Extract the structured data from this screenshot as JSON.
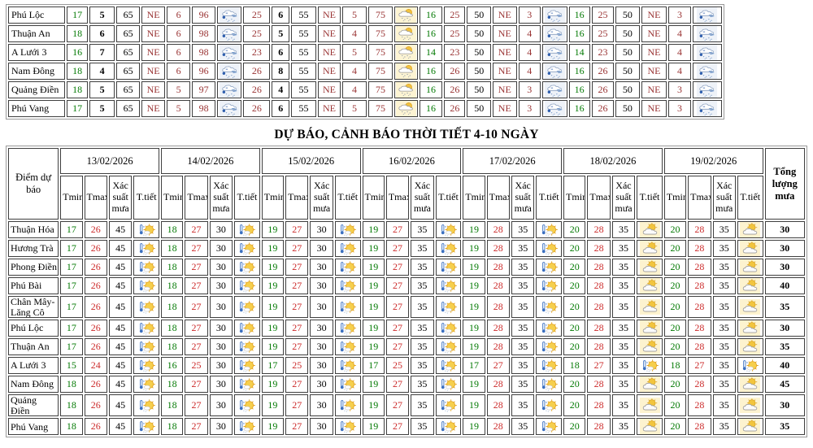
{
  "colors": {
    "tmin_green": "#047a04",
    "wind_dark_red": "#9a3434",
    "tmax_red": "#cc2b2b",
    "border": "#3f3f3f",
    "icon_bg_yellow": "#fdf4d3",
    "icon_bg_blue": "#eef2f8"
  },
  "icons": {
    "rain": "rain-cloud-icon",
    "sun_drizzle": "sun-behind-cloud-drizzle-icon",
    "sun_shower": "sun-with-shower-icon",
    "cloud_sun": "sun-behind-cloud-icon"
  },
  "top_table": {
    "rows": [
      {
        "name": "Phú Lộc",
        "cells": [
          "17",
          "5",
          "65",
          "NE",
          "6",
          "96",
          "@rain",
          "25",
          "6",
          "55",
          "NE",
          "5",
          "75",
          "@sun_drizzle",
          "16",
          "25",
          "50",
          "NE",
          "3",
          "@rain",
          "16",
          "25",
          "50",
          "NE",
          "3",
          "@rain"
        ]
      },
      {
        "name": "Thuận An",
        "cells": [
          "18",
          "6",
          "65",
          "NE",
          "6",
          "98",
          "@rain",
          "25",
          "5",
          "55",
          "NE",
          "4",
          "75",
          "@sun_drizzle",
          "16",
          "25",
          "50",
          "NE",
          "4",
          "@rain",
          "16",
          "25",
          "50",
          "NE",
          "4",
          "@rain"
        ]
      },
      {
        "name": "A Lưới 3",
        "cells": [
          "16",
          "7",
          "65",
          "NE",
          "6",
          "98",
          "@rain",
          "23",
          "6",
          "55",
          "NE",
          "5",
          "75",
          "@sun_drizzle",
          "14",
          "23",
          "50",
          "NE",
          "4",
          "@rain",
          "14",
          "23",
          "50",
          "NE",
          "4",
          "@rain"
        ]
      },
      {
        "name": "Nam Đông",
        "cells": [
          "18",
          "4",
          "65",
          "NE",
          "6",
          "96",
          "@rain",
          "26",
          "8",
          "55",
          "NE",
          "4",
          "75",
          "@sun_drizzle",
          "16",
          "26",
          "50",
          "NE",
          "4",
          "@rain",
          "16",
          "26",
          "50",
          "NE",
          "4",
          "@rain"
        ]
      },
      {
        "name": "Quảng Điền",
        "cells": [
          "18",
          "5",
          "65",
          "NE",
          "5",
          "97",
          "@rain",
          "26",
          "4",
          "55",
          "NE",
          "4",
          "75",
          "@sun_drizzle",
          "16",
          "26",
          "50",
          "NE",
          "3",
          "@rain",
          "16",
          "26",
          "50",
          "NE",
          "3",
          "@rain"
        ]
      },
      {
        "name": "Phú Vang",
        "cells": [
          "17",
          "5",
          "65",
          "NE",
          "5",
          "98",
          "@rain",
          "26",
          "6",
          "55",
          "NE",
          "5",
          "75",
          "@sun_drizzle",
          "16",
          "26",
          "50",
          "NE",
          "3",
          "@rain",
          "16",
          "26",
          "50",
          "NE",
          "3",
          "@rain"
        ]
      }
    ]
  },
  "forecast_table": {
    "title": "DỰ BÁO, CẢNH BÁO THỜI TIẾT 4-10 NGÀY",
    "header": {
      "station": "Điểm dự báo",
      "dates": [
        "13/02/2026",
        "14/02/2026",
        "15/02/2026",
        "16/02/2026",
        "17/02/2026",
        "18/02/2026",
        "19/02/2026"
      ],
      "sub": [
        "Tmin",
        "Tmax",
        "Xác suất mưa",
        "T.tiết"
      ],
      "total": "Tổng lượng mưa"
    },
    "rows": [
      {
        "name": "Thuận Hóa",
        "days": [
          [
            17,
            26,
            45,
            "@sun_shower"
          ],
          [
            18,
            27,
            30,
            "@sun_shower"
          ],
          [
            19,
            27,
            30,
            "@sun_shower"
          ],
          [
            19,
            27,
            35,
            "@sun_shower"
          ],
          [
            19,
            28,
            35,
            "@sun_shower"
          ],
          [
            20,
            28,
            35,
            "@cloud_sun"
          ],
          [
            20,
            28,
            35,
            "@cloud_sun"
          ]
        ],
        "total": 30
      },
      {
        "name": "Hương Trà",
        "days": [
          [
            17,
            26,
            45,
            "@sun_shower"
          ],
          [
            18,
            27,
            30,
            "@sun_shower"
          ],
          [
            19,
            27,
            30,
            "@sun_shower"
          ],
          [
            19,
            27,
            35,
            "@sun_shower"
          ],
          [
            19,
            28,
            35,
            "@sun_shower"
          ],
          [
            20,
            28,
            35,
            "@cloud_sun"
          ],
          [
            20,
            28,
            35,
            "@cloud_sun"
          ]
        ],
        "total": 30
      },
      {
        "name": "Phong Điền",
        "days": [
          [
            17,
            26,
            45,
            "@sun_shower"
          ],
          [
            18,
            27,
            30,
            "@sun_shower"
          ],
          [
            19,
            27,
            30,
            "@sun_shower"
          ],
          [
            19,
            27,
            35,
            "@sun_shower"
          ],
          [
            19,
            28,
            35,
            "@sun_shower"
          ],
          [
            20,
            28,
            35,
            "@cloud_sun"
          ],
          [
            20,
            28,
            35,
            "@cloud_sun"
          ]
        ],
        "total": 30
      },
      {
        "name": "Phú Bài",
        "days": [
          [
            17,
            26,
            45,
            "@sun_shower"
          ],
          [
            18,
            27,
            30,
            "@sun_shower"
          ],
          [
            19,
            27,
            30,
            "@sun_shower"
          ],
          [
            19,
            27,
            35,
            "@sun_shower"
          ],
          [
            19,
            28,
            35,
            "@sun_shower"
          ],
          [
            20,
            28,
            35,
            "@cloud_sun"
          ],
          [
            20,
            28,
            35,
            "@cloud_sun"
          ]
        ],
        "total": 40
      },
      {
        "name": "Chân Mây-Lăng Cô",
        "days": [
          [
            17,
            26,
            45,
            "@sun_shower"
          ],
          [
            18,
            27,
            30,
            "@sun_shower"
          ],
          [
            19,
            27,
            30,
            "@sun_shower"
          ],
          [
            19,
            27,
            35,
            "@sun_shower"
          ],
          [
            19,
            28,
            35,
            "@sun_shower"
          ],
          [
            20,
            28,
            35,
            "@cloud_sun"
          ],
          [
            20,
            28,
            35,
            "@cloud_sun"
          ]
        ],
        "total": 35
      },
      {
        "name": "Phú Lộc",
        "days": [
          [
            17,
            26,
            45,
            "@sun_shower"
          ],
          [
            18,
            27,
            30,
            "@sun_shower"
          ],
          [
            19,
            27,
            30,
            "@sun_shower"
          ],
          [
            19,
            27,
            35,
            "@sun_shower"
          ],
          [
            19,
            28,
            35,
            "@sun_shower"
          ],
          [
            20,
            28,
            35,
            "@cloud_sun"
          ],
          [
            20,
            28,
            35,
            "@cloud_sun"
          ]
        ],
        "total": 30
      },
      {
        "name": "Thuận An",
        "days": [
          [
            17,
            26,
            45,
            "@sun_shower"
          ],
          [
            18,
            27,
            30,
            "@sun_shower"
          ],
          [
            19,
            27,
            30,
            "@sun_shower"
          ],
          [
            19,
            27,
            35,
            "@sun_shower"
          ],
          [
            19,
            28,
            35,
            "@sun_shower"
          ],
          [
            20,
            28,
            35,
            "@cloud_sun"
          ],
          [
            20,
            28,
            35,
            "@cloud_sun"
          ]
        ],
        "total": 35
      },
      {
        "name": "A Lưới 3",
        "days": [
          [
            15,
            24,
            45,
            "@sun_shower"
          ],
          [
            16,
            25,
            30,
            "@sun_shower"
          ],
          [
            17,
            25,
            30,
            "@sun_shower"
          ],
          [
            17,
            25,
            35,
            "@sun_shower"
          ],
          [
            17,
            27,
            35,
            "@sun_shower"
          ],
          [
            18,
            27,
            35,
            "@sun_shower"
          ],
          [
            18,
            27,
            35,
            "@sun_shower"
          ]
        ],
        "total": 40
      },
      {
        "name": "Nam Đông",
        "days": [
          [
            18,
            26,
            45,
            "@sun_shower"
          ],
          [
            18,
            27,
            30,
            "@sun_shower"
          ],
          [
            19,
            27,
            30,
            "@sun_shower"
          ],
          [
            19,
            27,
            35,
            "@sun_shower"
          ],
          [
            19,
            28,
            35,
            "@sun_shower"
          ],
          [
            20,
            28,
            35,
            "@cloud_sun"
          ],
          [
            20,
            28,
            35,
            "@cloud_sun"
          ]
        ],
        "total": 45
      },
      {
        "name": "Quảng Điền",
        "days": [
          [
            18,
            26,
            45,
            "@sun_shower"
          ],
          [
            18,
            27,
            30,
            "@sun_shower"
          ],
          [
            19,
            27,
            30,
            "@sun_shower"
          ],
          [
            19,
            27,
            35,
            "@sun_shower"
          ],
          [
            19,
            28,
            35,
            "@sun_shower"
          ],
          [
            20,
            28,
            35,
            "@cloud_sun"
          ],
          [
            20,
            28,
            35,
            "@cloud_sun"
          ]
        ],
        "total": 30
      },
      {
        "name": "Phú Vang",
        "days": [
          [
            18,
            26,
            45,
            "@sun_shower"
          ],
          [
            18,
            27,
            30,
            "@sun_shower"
          ],
          [
            19,
            27,
            30,
            "@sun_shower"
          ],
          [
            19,
            27,
            35,
            "@sun_shower"
          ],
          [
            19,
            28,
            35,
            "@sun_shower"
          ],
          [
            20,
            28,
            35,
            "@cloud_sun"
          ],
          [
            20,
            28,
            35,
            "@cloud_sun"
          ]
        ],
        "total": 35
      }
    ]
  }
}
